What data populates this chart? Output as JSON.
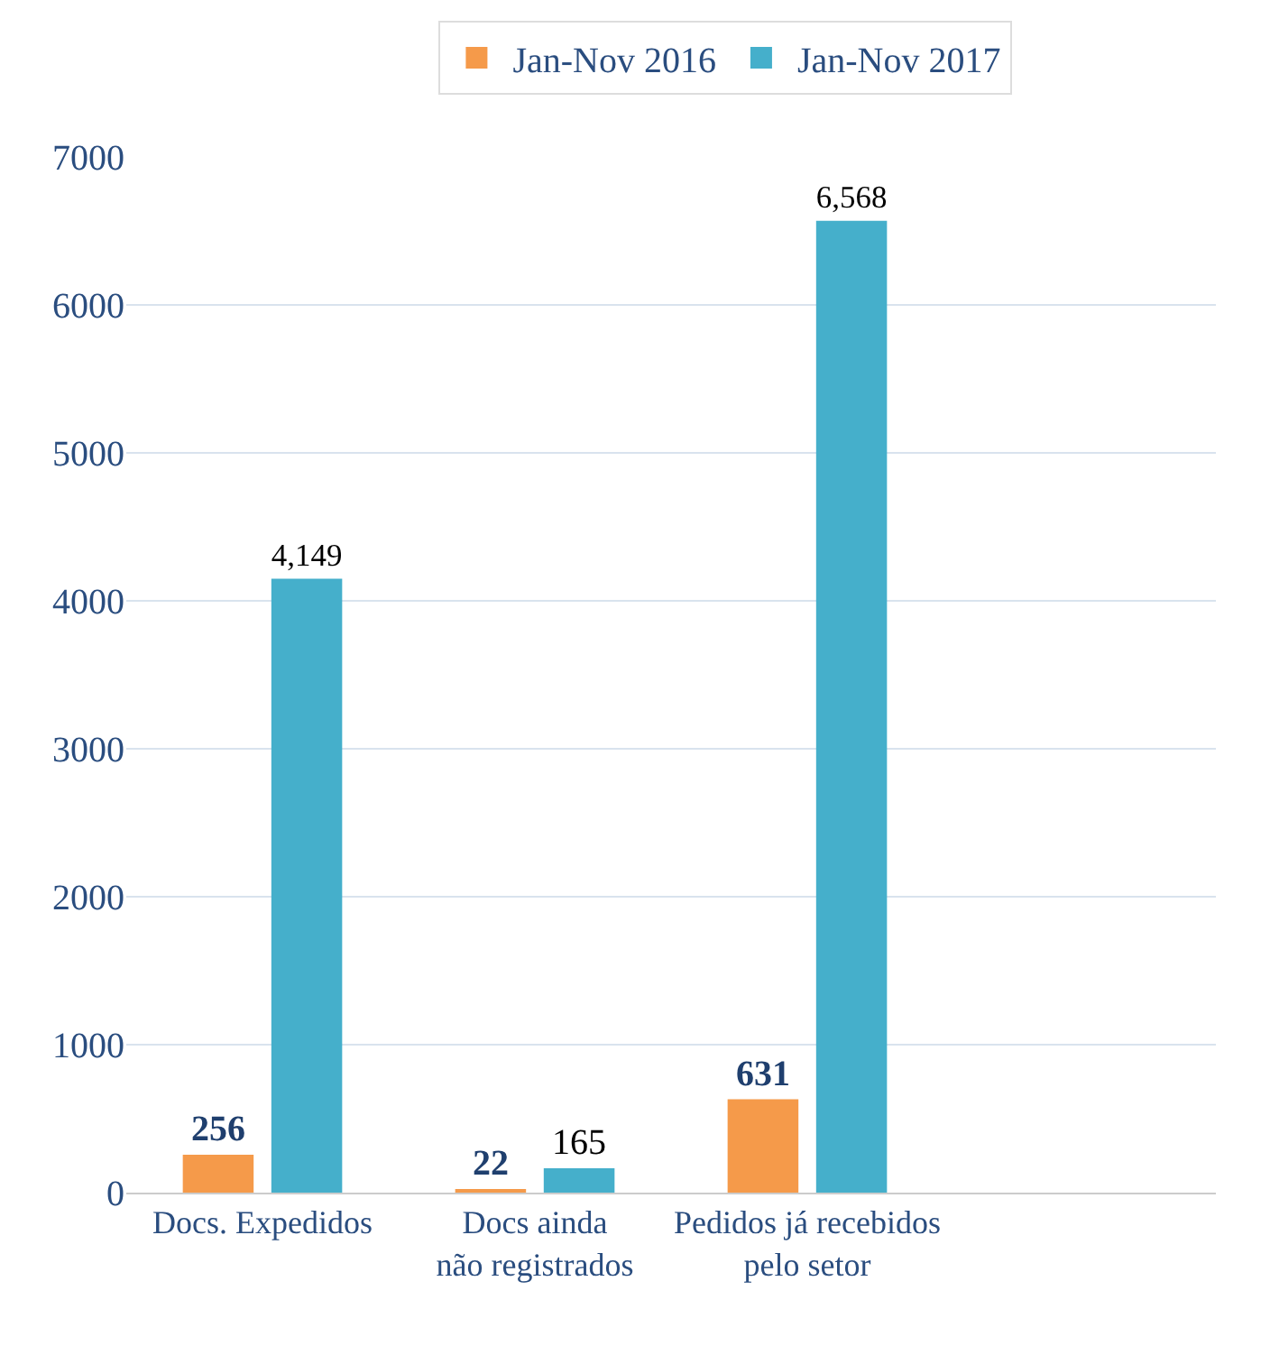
{
  "chart_data": {
    "type": "bar",
    "categories": [
      "Docs. Expedidos",
      "Docs ainda não registrados",
      "Pedidos já recebidos pelo setor",
      null
    ],
    "series": [
      {
        "name": "Jan-Nov 2016",
        "color": "#f59a4a",
        "values": [
          256,
          22,
          631,
          null
        ],
        "value_labels": [
          "256",
          "22",
          "631",
          null
        ]
      },
      {
        "name": "Jan-Nov 2017",
        "color": "#45afcb",
        "values": [
          4149,
          165,
          6568,
          null
        ],
        "value_labels": [
          "4,149",
          "165",
          "6,568",
          null
        ]
      }
    ],
    "ylim": [
      0,
      7000
    ],
    "yticks": [
      0,
      1000,
      2000,
      3000,
      4000,
      5000,
      6000,
      7000
    ],
    "grid": "y",
    "legend": "top"
  }
}
